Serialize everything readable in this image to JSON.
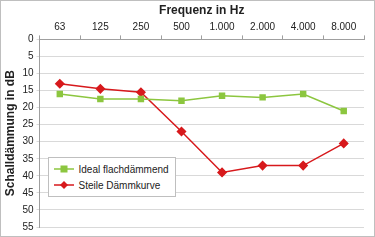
{
  "chart_data": {
    "type": "line",
    "x_label": "Frequenz in Hz",
    "y_label": "Schalldämmung in dB",
    "categories": [
      "63",
      "125",
      "250",
      "500",
      "1.000",
      "2.000",
      "4.000",
      "8.000"
    ],
    "series": [
      {
        "name": "Ideal flachdämmend",
        "color": "#8cc63f",
        "marker": "square",
        "values": [
          16,
          17.5,
          17.5,
          18,
          16.5,
          17,
          16,
          21
        ]
      },
      {
        "name": "Steile Dämmkurve",
        "color": "#d7191c",
        "marker": "diamond",
        "values": [
          13,
          14.5,
          15.5,
          27,
          39,
          37,
          37,
          30.5
        ]
      }
    ],
    "ylim": [
      0,
      55
    ],
    "yticks": [
      0,
      5,
      10,
      15,
      20,
      25,
      30,
      35,
      40,
      45,
      50,
      55
    ],
    "grid": true,
    "legend": "lower left"
  }
}
